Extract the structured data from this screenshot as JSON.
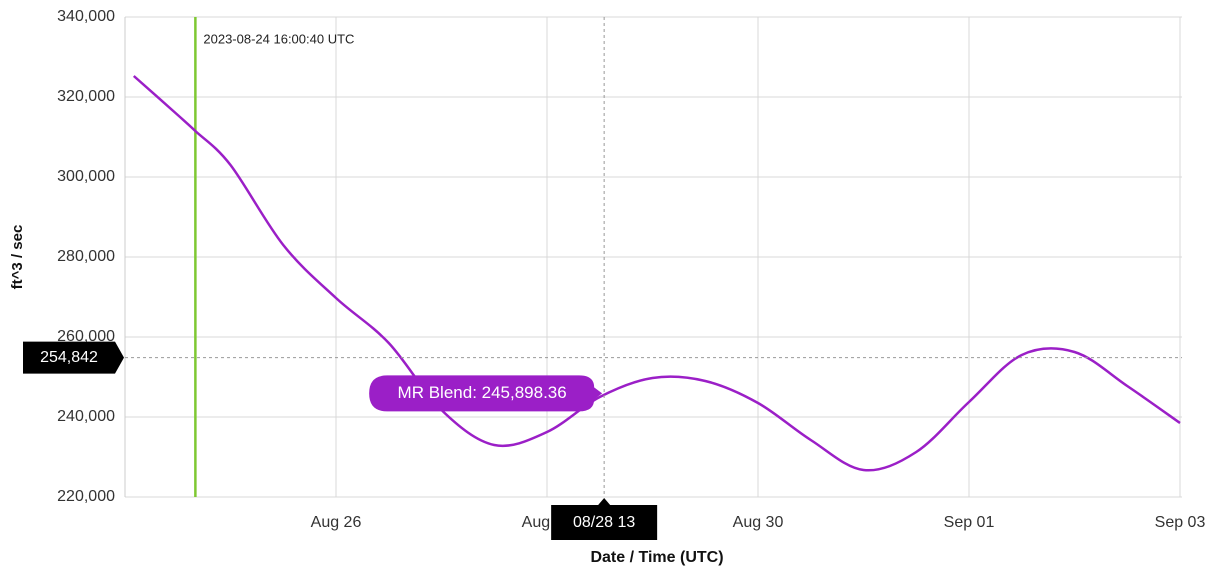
{
  "chart_data": {
    "type": "line",
    "x_label": "Date / Time (UTC)",
    "y_label": "ft^3 / sec",
    "x": [
      "2023-08-24T02:00Z",
      "2023-08-24T12:00Z",
      "2023-08-24T16:00Z",
      "2023-08-25T00:00Z",
      "2023-08-25T12:00Z",
      "2023-08-26T00:00Z",
      "2023-08-26T12:00Z",
      "2023-08-27T00:00Z",
      "2023-08-27T12:00Z",
      "2023-08-28T00:00Z",
      "2023-08-28T12:00Z",
      "2023-08-29T00:00Z",
      "2023-08-29T12:00Z",
      "2023-08-30T00:00Z",
      "2023-08-30T12:00Z",
      "2023-08-31T00:00Z",
      "2023-08-31T12:00Z",
      "2023-09-01T00:00Z",
      "2023-09-01T12:00Z",
      "2023-09-02T00:00Z",
      "2023-09-02T12:00Z",
      "2023-09-03T00:00Z"
    ],
    "series": [
      {
        "color": "#9b1fc7",
        "values": [
          325250,
          315500,
          311500,
          303000,
          283000,
          269750,
          258500,
          241750,
          233000,
          236250,
          245000,
          249750,
          249000,
          243500,
          234250,
          226750,
          231250,
          243750,
          255500,
          256250,
          247750,
          238500
        ]
      }
    ],
    "xlim": [
      "2023-08-24T00:00Z",
      "2023-09-03T00:00Z"
    ],
    "xticks": [
      {
        "value": "2023-08-26T00:00Z",
        "label": "Aug 26"
      },
      {
        "value": "2023-08-28T00:00Z",
        "label": "Aug 28"
      },
      {
        "value": "2023-08-30T00:00Z",
        "label": "Aug 30"
      },
      {
        "value": "2023-09-01T00:00Z",
        "label": "Sep 01"
      },
      {
        "value": "2023-09-03T00:00Z",
        "label": "Sep 03"
      }
    ],
    "ylim": [
      220000,
      340000
    ],
    "yticks": [
      {
        "value": 220000,
        "label": "220,000"
      },
      {
        "value": 240000,
        "label": "240,000"
      },
      {
        "value": 260000,
        "label": "260,000"
      },
      {
        "value": 280000,
        "label": "280,000"
      },
      {
        "value": 300000,
        "label": "300,000"
      },
      {
        "value": 320000,
        "label": "320,000"
      },
      {
        "value": 340000,
        "label": "340,000"
      }
    ],
    "grid": true,
    "annotation": {
      "x": "2023-08-24T16:00:40Z",
      "label": "2023-08-24 16:00:40 UTC",
      "color": "#7ec832"
    },
    "crosshair": {
      "x": "2023-08-28T13:00Z",
      "x_label": "08/28 13",
      "y": 254842,
      "y_label": "254,842"
    },
    "tooltip": {
      "x": "2023-08-28T13:00Z",
      "value": 245898.36,
      "label": "MR Blend: 245,898.36"
    }
  }
}
